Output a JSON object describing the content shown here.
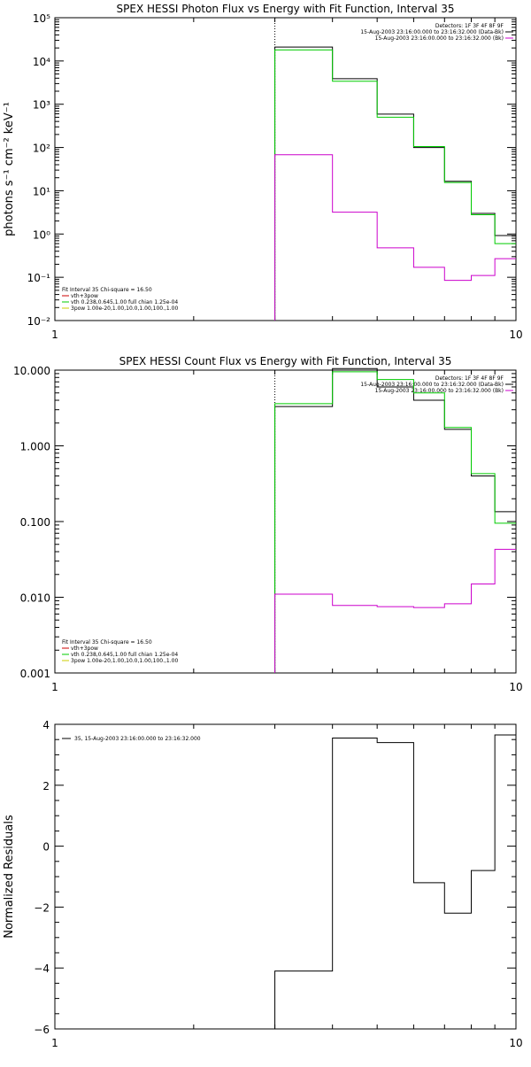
{
  "chart_data": [
    {
      "type": "line",
      "title": "SPEX HESSI Photon Flux vs Energy with Fit Function, Interval 35",
      "xlabel": "",
      "ylabel": "photons s⁻¹ cm⁻² keV⁻¹",
      "xscale": "log",
      "yscale": "log",
      "xlim": [
        1,
        10
      ],
      "ylim": [
        0.01,
        100000
      ],
      "x_tick_labels": [
        "1",
        "10"
      ],
      "y_tick_labels": [
        "10⁻²",
        "10⁻¹",
        "10⁰",
        "10¹",
        "10²",
        "10³",
        "10⁴",
        "10⁵"
      ],
      "vline_x": 3,
      "info_lines": [
        "Detectors: 1F 3F 4F 8F 9F",
        "15-Aug-2003 23:16:00.000 to 23:16:32.000 (Data-Bk)",
        "15-Aug-2003 23:16:00.000 to 23:16:32.000 (Bk)"
      ],
      "legend_lines": [
        "Fit Interval 35   Chi-square = 16.50",
        "vth+3pow",
        "vth 0.238,0.645,1.00  full chian 1.25e-04",
        "3pow 1.00e-20,1.00,10.0,1.00,100.,1.00"
      ],
      "series": [
        {
          "color": "#000000",
          "step": true,
          "x": [
            3,
            4,
            5,
            6,
            7,
            8,
            9,
            10
          ],
          "values": [
            21000,
            3900,
            590,
            100,
            16.5,
            3.0,
            0.92,
            0.92
          ]
        },
        {
          "color": "#00cc00",
          "step": true,
          "x": [
            3,
            4,
            5,
            6,
            7,
            8,
            9,
            10
          ],
          "values": [
            18000,
            3400,
            500,
            105,
            15.5,
            2.8,
            0.6,
            0.6
          ]
        },
        {
          "color": "#cc00cc",
          "step": true,
          "x": [
            3,
            4,
            5,
            6,
            7,
            8,
            9,
            10
          ],
          "values": [
            68,
            3.2,
            0.48,
            0.17,
            0.085,
            0.11,
            0.27,
            0.27
          ]
        }
      ]
    },
    {
      "type": "line",
      "title": "SPEX HESSI Count Flux vs Energy with Fit Function, Interval 35",
      "xlabel": "",
      "ylabel": "",
      "xscale": "log",
      "yscale": "log",
      "xlim": [
        1,
        10
      ],
      "ylim": [
        0.001,
        10
      ],
      "x_tick_labels": [
        "1",
        "10"
      ],
      "y_tick_labels": [
        "0.001",
        "0.010",
        "0.100",
        "1.000",
        "10.000"
      ],
      "vline_x": 3,
      "info_lines": [
        "Detectors: 1F 3F 4F 8F 9F",
        "15-Aug-2003 23:16:00.000 to 23:16:32.000 (Data-Bk)",
        "15-Aug-2003 23:16:00.000 to 23:16:32.000 (Bk)"
      ],
      "legend_lines": [
        "Fit Interval 35   Chi-square = 16.50",
        "vth+3pow",
        "vth 0.238,0.645,1.00  full chian 1.25e-04",
        "3pow 1.00e-20,1.00,10.0,1.00,100.,1.00"
      ],
      "series": [
        {
          "color": "#000000",
          "step": true,
          "x": [
            3,
            4,
            5,
            6,
            7,
            8,
            9,
            10
          ],
          "values": [
            3.3,
            10.5,
            6.0,
            4.0,
            1.65,
            0.4,
            0.135,
            0.135
          ]
        },
        {
          "color": "#00cc00",
          "step": true,
          "x": [
            3,
            4,
            5,
            6,
            7,
            8,
            9,
            10
          ],
          "values": [
            3.6,
            9.5,
            7.5,
            5.0,
            1.75,
            0.43,
            0.095,
            0.095
          ]
        },
        {
          "color": "#cc00cc",
          "step": true,
          "x": [
            3,
            4,
            5,
            6,
            7,
            8,
            9,
            10
          ],
          "values": [
            0.011,
            0.0078,
            0.0075,
            0.0073,
            0.0082,
            0.015,
            0.043,
            0.043
          ]
        }
      ]
    },
    {
      "type": "line",
      "title": "",
      "xlabel": "",
      "ylabel": "Normalized Residuals",
      "xscale": "log",
      "yscale": "linear",
      "xlim": [
        1,
        10
      ],
      "ylim": [
        -6,
        4
      ],
      "x_tick_labels": [
        "1",
        "10"
      ],
      "y_tick_labels": [
        "−6",
        "−4",
        "−2",
        "0",
        "2",
        "4"
      ],
      "legend_lines": [
        "35, 15-Aug-2003 23:16:00.000 to 23:16:32.000"
      ],
      "series": [
        {
          "color": "#000000",
          "step": true,
          "x": [
            3,
            4,
            5,
            6,
            7,
            8,
            9,
            10
          ],
          "values": [
            -4.1,
            3.55,
            3.4,
            -1.2,
            -2.2,
            -0.8,
            3.65,
            3.65
          ]
        }
      ]
    }
  ]
}
